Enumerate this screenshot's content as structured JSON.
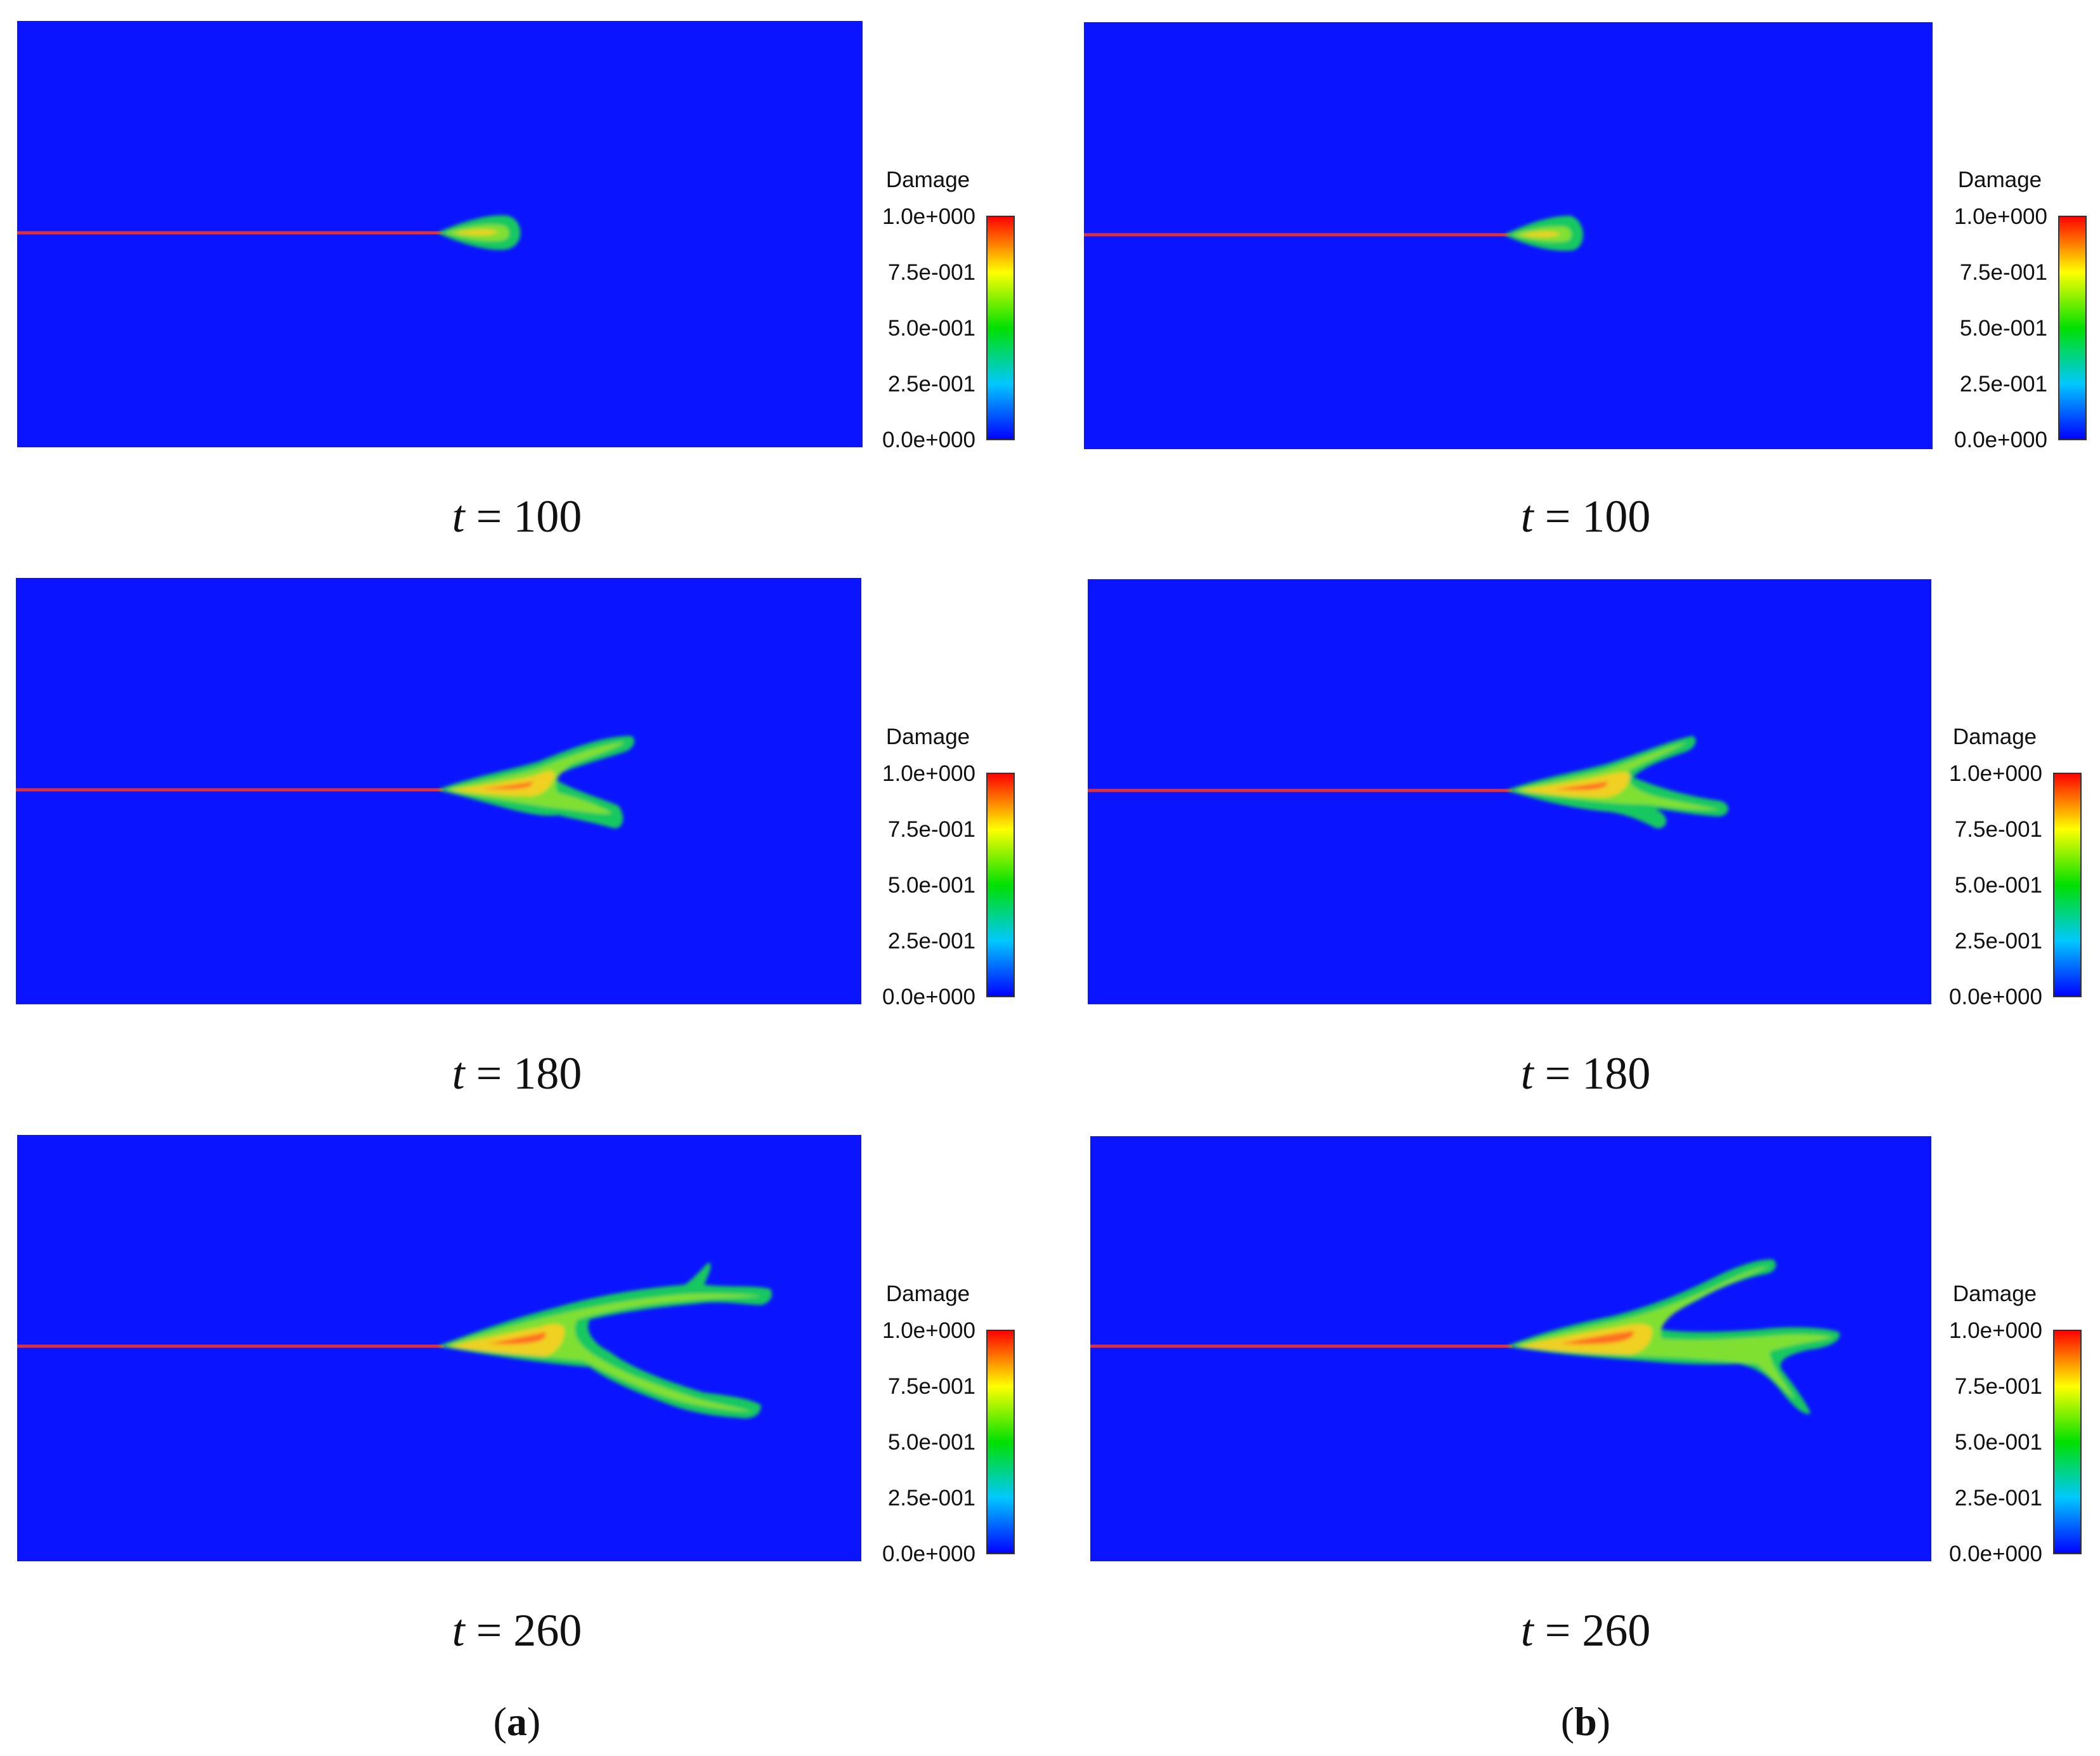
{
  "colorbar": {
    "title": "Damage",
    "ticks": [
      "1.0e+000",
      "7.5e-001",
      "5.0e-001",
      "2.5e-001",
      "0.0e+000"
    ],
    "tick_values": [
      1.0,
      0.75,
      0.5,
      0.25,
      0.0
    ],
    "colors": [
      "#0000ff",
      "#00c8ff",
      "#00e000",
      "#ffff00",
      "#ff0000"
    ]
  },
  "colors": {
    "background": "#0a14ff",
    "precrack": "#e0303a",
    "damage_outer": "#18c860",
    "damage_mid": "#80e030",
    "damage_core": "#f0d020",
    "damage_hot": "#ff7020"
  },
  "time_prefix": "t",
  "time_equals": "=",
  "columns": [
    {
      "label_open": "(",
      "label_letter": "a",
      "label_close": ")",
      "panels": [
        {
          "time": "100"
        },
        {
          "time": "180"
        },
        {
          "time": "260"
        }
      ]
    },
    {
      "label_open": "(",
      "label_letter": "b",
      "label_close": ")",
      "panels": [
        {
          "time": "100"
        },
        {
          "time": "180"
        },
        {
          "time": "260"
        }
      ]
    }
  ]
}
